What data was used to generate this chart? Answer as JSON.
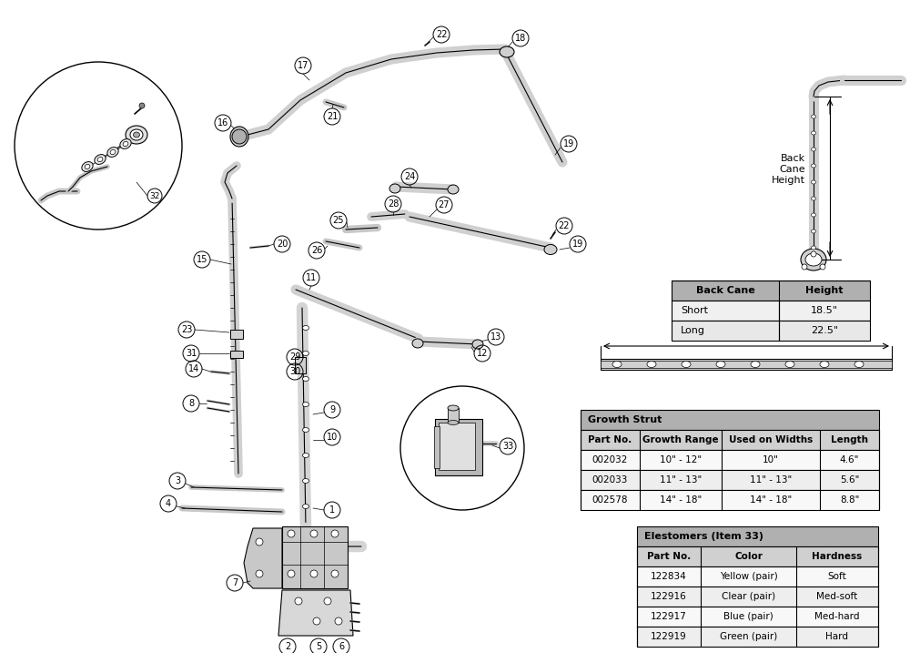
{
  "background_color": "#ffffff",
  "fig_width": 10.0,
  "fig_height": 7.17,
  "dpi": 100,
  "back_cane_table": {
    "header": [
      "Back Cane",
      "Height"
    ],
    "rows": [
      [
        "Short",
        "18.5\""
      ],
      [
        "Long",
        "22.5\""
      ]
    ]
  },
  "growth_strut_table": {
    "title": "Growth Strut",
    "header": [
      "Part No.",
      "Growth Range",
      "Used on Widths",
      "Length"
    ],
    "rows": [
      [
        "002032",
        "10\" - 12\"",
        "10\"",
        "4.6\""
      ],
      [
        "002033",
        "11\" - 13\"",
        "11\" - 13\"",
        "5.6\""
      ],
      [
        "002578",
        "14\" - 18\"",
        "14\" - 18\"",
        "8.8\""
      ]
    ]
  },
  "elastomers_table": {
    "title": "Elestomers (Item 33)",
    "header": [
      "Part No.",
      "Color",
      "Hardness"
    ],
    "rows": [
      [
        "122834",
        "Yellow (pair)",
        "Soft"
      ],
      [
        "122916",
        "Clear (pair)",
        "Med-soft"
      ],
      [
        "122917",
        "Blue (pair)",
        "Med-hard"
      ],
      [
        "122919",
        "Green (pair)",
        "Hard"
      ]
    ]
  }
}
